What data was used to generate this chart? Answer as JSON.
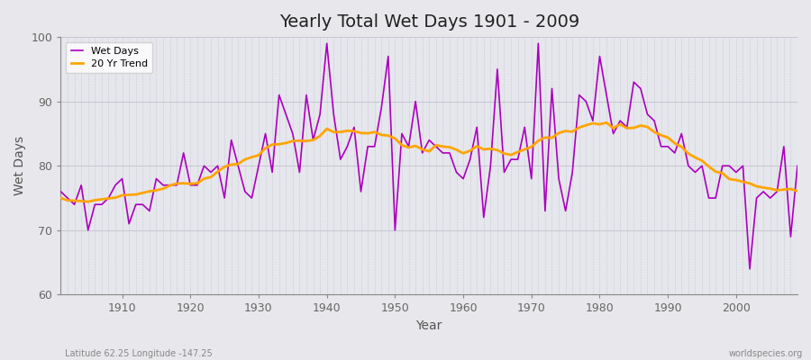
{
  "title": "Yearly Total Wet Days 1901 - 2009",
  "xlabel": "Year",
  "ylabel": "Wet Days",
  "footnote_left": "Latitude 62.25 Longitude -147.25",
  "footnote_right": "worldspecies.org",
  "line_color": "#AA00BB",
  "trend_color": "#FFA500",
  "bg_color": "#E8E8EC",
  "plot_bg_color": "#EEEEF4",
  "band_color": "#E0E0E8",
  "ylim": [
    60,
    100
  ],
  "xlim": [
    1901,
    2009
  ],
  "yticks": [
    60,
    70,
    80,
    90,
    100
  ],
  "xticks": [
    1910,
    1920,
    1930,
    1940,
    1950,
    1960,
    1970,
    1980,
    1990,
    2000
  ],
  "years": [
    1901,
    1902,
    1903,
    1904,
    1905,
    1906,
    1907,
    1908,
    1909,
    1910,
    1911,
    1912,
    1913,
    1914,
    1915,
    1916,
    1917,
    1918,
    1919,
    1920,
    1921,
    1922,
    1923,
    1924,
    1925,
    1926,
    1927,
    1928,
    1929,
    1930,
    1931,
    1932,
    1933,
    1934,
    1935,
    1936,
    1937,
    1938,
    1939,
    1940,
    1941,
    1942,
    1943,
    1944,
    1945,
    1946,
    1947,
    1948,
    1949,
    1950,
    1951,
    1952,
    1953,
    1954,
    1955,
    1956,
    1957,
    1958,
    1959,
    1960,
    1961,
    1962,
    1963,
    1964,
    1965,
    1966,
    1967,
    1968,
    1969,
    1970,
    1971,
    1972,
    1973,
    1974,
    1975,
    1976,
    1977,
    1978,
    1979,
    1980,
    1981,
    1982,
    1983,
    1984,
    1985,
    1986,
    1987,
    1988,
    1989,
    1990,
    1991,
    1992,
    1993,
    1994,
    1995,
    1996,
    1997,
    1998,
    1999,
    2000,
    2001,
    2002,
    2003,
    2004,
    2005,
    2006,
    2007,
    2008,
    2009
  ],
  "wet_days": [
    76,
    75,
    74,
    77,
    70,
    74,
    74,
    75,
    77,
    78,
    71,
    74,
    74,
    73,
    78,
    77,
    77,
    77,
    82,
    77,
    77,
    80,
    79,
    80,
    75,
    84,
    80,
    76,
    75,
    80,
    85,
    79,
    91,
    88,
    85,
    79,
    91,
    84,
    88,
    99,
    88,
    81,
    83,
    86,
    76,
    83,
    83,
    89,
    97,
    70,
    85,
    83,
    90,
    82,
    84,
    83,
    82,
    82,
    79,
    78,
    81,
    86,
    72,
    80,
    95,
    79,
    81,
    81,
    86,
    78,
    99,
    73,
    92,
    78,
    73,
    79,
    91,
    90,
    87,
    97,
    91,
    85,
    87,
    86,
    93,
    92,
    88,
    87,
    83,
    83,
    82,
    85,
    80,
    79,
    80,
    75,
    75,
    80,
    80,
    79,
    80,
    64,
    75,
    76,
    75,
    76,
    83,
    69,
    80
  ]
}
